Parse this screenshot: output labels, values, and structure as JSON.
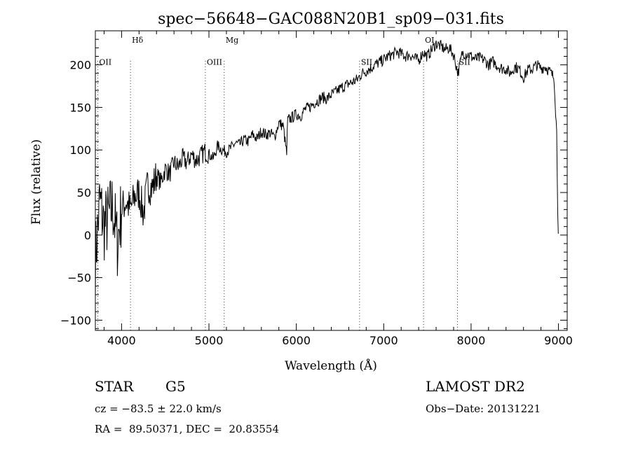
{
  "chart_data": {
    "type": "line",
    "title": "spec−56648−GAC088N20B1_sp09−031.fits",
    "xlabel": "Wavelength (Å)",
    "ylabel": "Flux (relative)",
    "xlim": [
      3700,
      9100
    ],
    "ylim": [
      -112,
      240
    ],
    "x_ticks": [
      4000,
      5000,
      6000,
      7000,
      8000,
      9000
    ],
    "y_ticks": [
      -100,
      -50,
      0,
      50,
      100,
      150,
      200
    ],
    "grid": false,
    "legend": "none",
    "line_color": "#000000",
    "series": [
      {
        "x": [
          3700,
          3750,
          3800,
          3850,
          3900,
          3950,
          4000,
          4050,
          4100,
          4150,
          4200,
          4250,
          4300,
          4350,
          4400,
          4450,
          4500,
          4550,
          4600,
          4650,
          4700,
          4750,
          4800,
          4850,
          4900,
          4950,
          5000,
          5050,
          5100,
          5150,
          5200,
          5250,
          5300,
          5350,
          5400,
          5450,
          5500,
          5550,
          5600,
          5650,
          5700,
          5750,
          5800,
          5850,
          5890,
          5900,
          5950,
          6000,
          6050,
          6100,
          6150,
          6200,
          6250,
          6300,
          6350,
          6400,
          6450,
          6500,
          6550,
          6600,
          6650,
          6700,
          6750,
          6800,
          6850,
          6900,
          6950,
          7000,
          7050,
          7100,
          7150,
          7200,
          7250,
          7300,
          7350,
          7400,
          7450,
          7500,
          7550,
          7600,
          7650,
          7700,
          7750,
          7800,
          7850,
          7900,
          7950,
          8000,
          8050,
          8100,
          8150,
          8200,
          8250,
          8300,
          8350,
          8400,
          8450,
          8500,
          8550,
          8600,
          8650,
          8700,
          8750,
          8800,
          8850,
          8900,
          8950,
          8980,
          8990,
          9000
        ],
        "y": [
          -30,
          40,
          10,
          20,
          35,
          -10,
          30,
          40,
          30,
          45,
          50,
          25,
          60,
          55,
          70,
          62,
          78,
          72,
          85,
          80,
          90,
          85,
          95,
          88,
          92,
          98,
          95,
          90,
          105,
          100,
          98,
          102,
          108,
          106,
          112,
          110,
          118,
          113,
          122,
          118,
          120,
          115,
          132,
          128,
          95,
          135,
          138,
          142,
          140,
          148,
          150,
          155,
          158,
          162,
          160,
          165,
          168,
          172,
          175,
          178,
          180,
          183,
          190,
          193,
          196,
          200,
          203,
          206,
          210,
          212,
          215,
          213,
          210,
          212,
          208,
          205,
          215,
          210,
          218,
          225,
          222,
          218,
          220,
          212,
          190,
          214,
          213,
          210,
          207,
          208,
          206,
          200,
          204,
          199,
          196,
          195,
          190,
          198,
          195,
          185,
          194,
          195,
          200,
          196,
          198,
          192,
          185,
          120,
          40,
          0
        ]
      }
    ],
    "spectral_lines": [
      {
        "name": "OII",
        "x": 3727
      },
      {
        "name": "Hδ",
        "x": 4102
      },
      {
        "name": "OIII",
        "x": 4959
      },
      {
        "name": "Mg",
        "x": 5175
      },
      {
        "name": "SII",
        "x": 6724
      },
      {
        "name": "OI",
        "x": 7456
      },
      {
        "name": "SII",
        "x": 7845
      }
    ]
  },
  "footer": {
    "object_type": "STAR",
    "subclass": "G5",
    "survey": "LAMOST DR2",
    "velocity": "cz = −83.5 ± 22.0 km/s",
    "obs_date": "Obs−Date: 20131221",
    "coords": "RA =  89.50371, DEC =  20.83554"
  }
}
